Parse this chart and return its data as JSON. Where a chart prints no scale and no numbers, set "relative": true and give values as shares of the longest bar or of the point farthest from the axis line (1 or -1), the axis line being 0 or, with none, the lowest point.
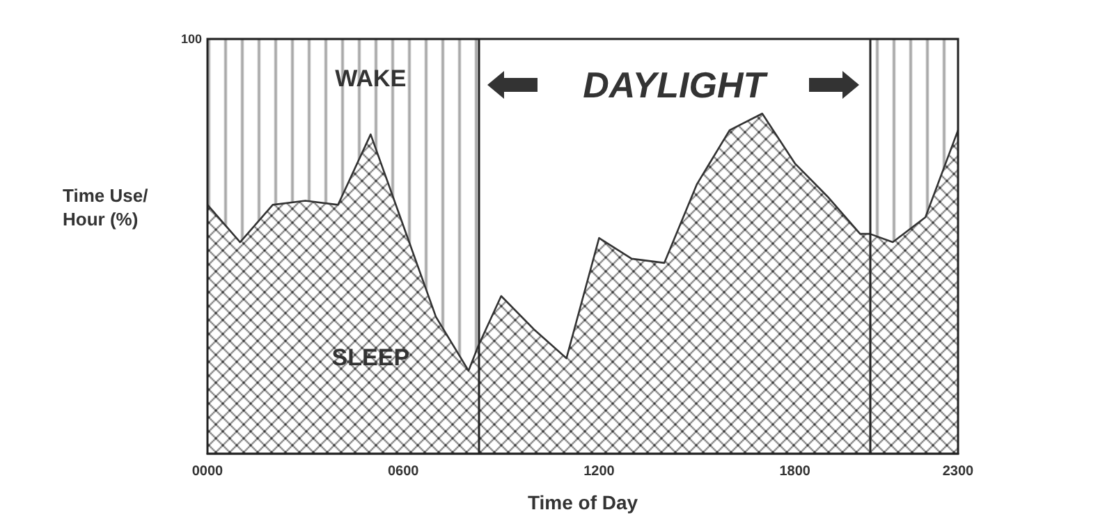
{
  "chart_data": {
    "type": "area",
    "stacked": true,
    "relative": true,
    "xlabel": "Time of Day",
    "ylabel": "Time Use/ Hour (%)",
    "x": [
      0,
      100,
      200,
      300,
      400,
      500,
      600,
      700,
      800,
      830,
      900,
      1000,
      1100,
      1200,
      1300,
      1400,
      1500,
      1600,
      1700,
      1800,
      1900,
      2000,
      2030,
      2100,
      2200,
      2300
    ],
    "xlim": [
      0,
      2300
    ],
    "xticks": [
      {
        "value": 0,
        "label": "0000"
      },
      {
        "value": 600,
        "label": "0600"
      },
      {
        "value": 1200,
        "label": "1200"
      },
      {
        "value": 1800,
        "label": "1800"
      },
      {
        "value": 2300,
        "label": "2300"
      }
    ],
    "series": [
      {
        "name": "SLEEP",
        "color": "#3a3a3a",
        "values": [
          0.6,
          0.51,
          0.6,
          0.61,
          0.6,
          0.77,
          0.55,
          0.33,
          0.2,
          0.26,
          0.38,
          0.3,
          0.23,
          0.52,
          0.47,
          0.46,
          0.65,
          0.78,
          0.82,
          0.7,
          0.62,
          0.53,
          0.53,
          0.51,
          0.57,
          0.78
        ]
      },
      {
        "name": "WAKE",
        "color": "#555555",
        "values": [
          0.4,
          0.49,
          0.4,
          0.39,
          0.4,
          0.23,
          0.45,
          0.67,
          0.8,
          0.74,
          null,
          null,
          null,
          null,
          null,
          null,
          null,
          null,
          null,
          null,
          null,
          null,
          0.47,
          0.49,
          0.43,
          0.22
        ]
      }
    ],
    "ref_lines": [
      {
        "axis": "x",
        "value": 830
      },
      {
        "axis": "x",
        "value": 2030
      }
    ],
    "annotations": [
      "100",
      "DAYLIGHT"
    ]
  }
}
